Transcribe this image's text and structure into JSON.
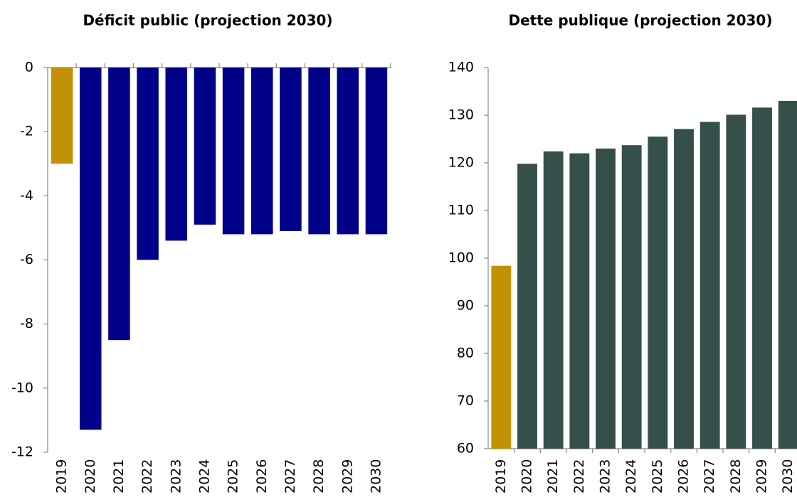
{
  "chart_data": [
    {
      "type": "bar",
      "title": "Déficit public (projection 2030)",
      "categories": [
        "2019",
        "2020",
        "2021",
        "2022",
        "2023",
        "2024",
        "2025",
        "2026",
        "2027",
        "2028",
        "2029",
        "2030"
      ],
      "values": [
        -3,
        -11.3,
        -8.5,
        -6,
        -5.4,
        -4.9,
        -5.2,
        -5.2,
        -5.1,
        -5.2,
        -5.2,
        -5.2
      ],
      "colors": [
        "#c39204",
        "#000088",
        "#000088",
        "#000088",
        "#000088",
        "#000088",
        "#000088",
        "#000088",
        "#000088",
        "#000088",
        "#000088",
        "#000088"
      ],
      "ylim": [
        -12,
        0
      ],
      "yticks": [
        0,
        -2,
        -4,
        -6,
        -8,
        -10,
        -12
      ],
      "grid": false
    },
    {
      "type": "bar",
      "title": "Dette publique (projection 2030)",
      "categories": [
        "2019",
        "2020",
        "2021",
        "2022",
        "2023",
        "2024",
        "2025",
        "2026",
        "2027",
        "2028",
        "2029",
        "2030"
      ],
      "values": [
        98.4,
        119.8,
        122.4,
        122.0,
        123.0,
        123.7,
        125.5,
        127.1,
        128.6,
        130.1,
        131.6,
        133.0
      ],
      "colors": [
        "#c39204",
        "#35504b",
        "#35504b",
        "#35504b",
        "#35504b",
        "#35504b",
        "#35504b",
        "#35504b",
        "#35504b",
        "#35504b",
        "#35504b",
        "#35504b"
      ],
      "ylim": [
        60,
        140
      ],
      "yticks": [
        60,
        70,
        80,
        90,
        100,
        110,
        120,
        130,
        140
      ],
      "grid": false
    }
  ]
}
